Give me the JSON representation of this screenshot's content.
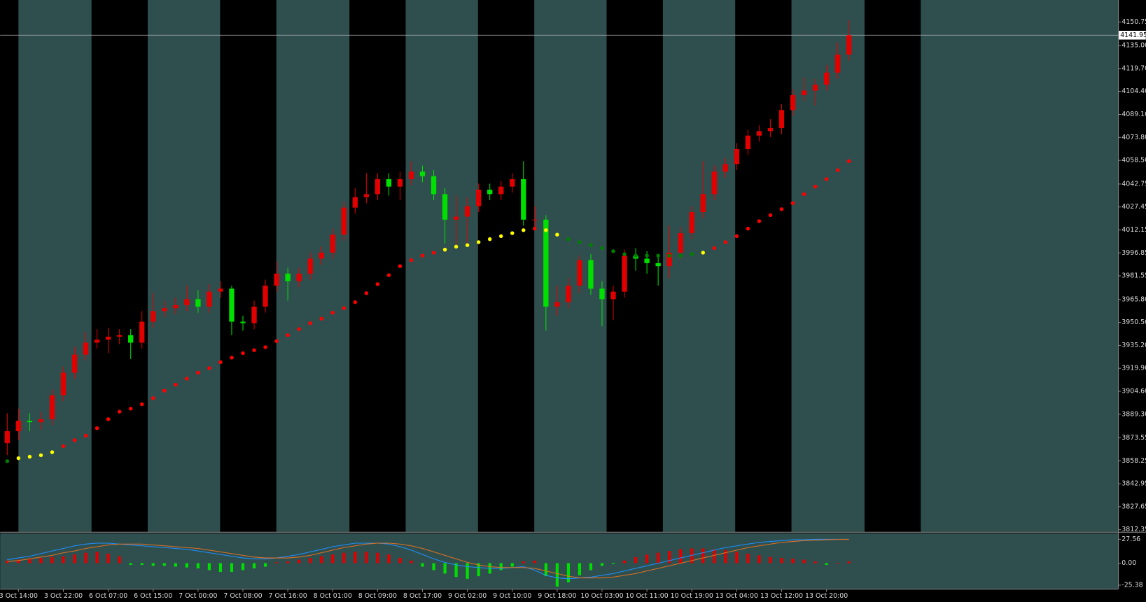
{
  "chart_data": [
    {
      "type": "candlestick",
      "x": [
        -2,
        0,
        2,
        4,
        6,
        8,
        10,
        12,
        14,
        16,
        18,
        20,
        22,
        24,
        26,
        28,
        30,
        32,
        34,
        36,
        38,
        40,
        42,
        44,
        46,
        48,
        50,
        52,
        54,
        56,
        58,
        60,
        62,
        64,
        66,
        68,
        70,
        72,
        74,
        76,
        78,
        80,
        82,
        84,
        86,
        88,
        90,
        92,
        94,
        96,
        98,
        100,
        102,
        104,
        106,
        108,
        110,
        112,
        114,
        116,
        118,
        120,
        122,
        124,
        126,
        128,
        130,
        132,
        134,
        136,
        138,
        140,
        142,
        144,
        146,
        148
      ],
      "open": [
        3870,
        3878,
        3885,
        3884,
        3886,
        3902,
        3917,
        3929,
        3937,
        3939,
        3941,
        3942,
        3937,
        3951,
        3958,
        3960,
        3962,
        3966,
        3961,
        3971,
        3973,
        3951,
        3950,
        3961,
        3975,
        3983,
        3978,
        3983,
        3993,
        3997,
        4009,
        4027,
        4034,
        4036,
        4046,
        4041,
        4046,
        4051,
        4048,
        4036,
        4019,
        4021,
        4028,
        4039,
        4036,
        4041,
        4046,
        4019,
        4019,
        3961,
        3964,
        3975,
        3992,
        3973,
        3966,
        3971,
        3995,
        3993,
        3990,
        3988,
        3997,
        4010,
        4024,
        4036,
        4051,
        4056,
        4066,
        4075,
        4078,
        4080,
        4092,
        4102,
        4105,
        4109,
        4117,
        4129
      ],
      "high": [
        3890,
        3893,
        3890,
        3891,
        3906,
        3921,
        3934,
        3944,
        3946,
        3947,
        3946,
        3946,
        3958,
        3970,
        3965,
        3967,
        3975,
        3972,
        3976,
        3978,
        3975,
        3955,
        3965,
        3979,
        3991,
        3987,
        3987,
        3997,
        4001,
        4013,
        4031,
        4040,
        4050,
        4050,
        4050,
        4051,
        4058,
        4055,
        4052,
        4040,
        4035,
        4034,
        4043,
        4043,
        4045,
        4050,
        4058,
        4028,
        4022,
        3975,
        3980,
        3995,
        3996,
        3978,
        3975,
        3999,
        4000,
        3998,
        3996,
        4015,
        4014,
        4028,
        4058,
        4055,
        4060,
        4070,
        4079,
        4082,
        4086,
        4096,
        4106,
        4114,
        4113,
        4122,
        4137,
        4152
      ],
      "low": [
        3862,
        3872,
        3878,
        3879,
        3882,
        3898,
        3913,
        3925,
        3933,
        3930,
        3936,
        3926,
        3933,
        3947,
        3954,
        3956,
        3958,
        3957,
        3957,
        3967,
        3942,
        3945,
        3946,
        3957,
        3971,
        3965,
        3974,
        3979,
        3989,
        3993,
        4005,
        4023,
        4030,
        4032,
        4035,
        4032,
        4042,
        4044,
        4032,
        4003,
        4000,
        4002,
        4024,
        4032,
        4032,
        4037,
        4015,
        4013,
        3945,
        3955,
        3960,
        3970,
        3969,
        3948,
        3952,
        3967,
        3985,
        3983,
        3975,
        3980,
        3993,
        4006,
        4020,
        4032,
        4047,
        4052,
        4062,
        4071,
        4074,
        4076,
        4088,
        4098,
        4095,
        4105,
        4113,
        4125
      ],
      "close": [
        3878,
        3885,
        3884,
        3886,
        3902,
        3917,
        3929,
        3937,
        3939,
        3941,
        3942,
        3937,
        3951,
        3958,
        3960,
        3962,
        3966,
        3961,
        3971,
        3973,
        3951,
        3950,
        3961,
        3975,
        3983,
        3978,
        3983,
        3993,
        3997,
        4009,
        4027,
        4034,
        4036,
        4046,
        4041,
        4046,
        4051,
        4048,
        4036,
        4019,
        4021,
        4028,
        4039,
        4036,
        4041,
        4046,
        4019,
        4019,
        3961,
        3964,
        3975,
        3992,
        3973,
        3966,
        3971,
        3995,
        3993,
        3990,
        3988,
        3997,
        4010,
        4024,
        4036,
        4051,
        4056,
        4066,
        4075,
        4078,
        4080,
        4092,
        4102,
        4105,
        4109,
        4117,
        4129,
        4141.95
      ],
      "up_color": "#e00000",
      "down_color": "#00e000",
      "ma": {
        "values": [
          3858,
          3860,
          3861,
          3862,
          3864,
          3868,
          3872,
          3875,
          3880,
          3886,
          3891,
          3893,
          3896,
          3900,
          3905,
          3909,
          3913,
          3917,
          3920,
          3924,
          3927,
          3930,
          3932,
          3934,
          3938,
          3942,
          3946,
          3950,
          3953,
          3957,
          3960,
          3964,
          3970,
          3976,
          3982,
          3988,
          3992,
          3995,
          3997,
          3999,
          4001,
          4002,
          4004,
          4006,
          4008,
          4010,
          4012,
          4013,
          4012,
          4009,
          4006,
          4004,
          4002,
          4000,
          3998,
          3996,
          3995,
          3995,
          3995,
          3995,
          3995,
          3996,
          3997,
          4000,
          4004,
          4008,
          4013,
          4018,
          4022,
          4026,
          4030,
          4036,
          4041,
          4046,
          4052,
          4058
        ],
        "point_colors": [
          "#008000",
          "#ffff00",
          "#ffff00",
          "#ffff00",
          "#ffff00",
          "#ff0000",
          "#ff0000",
          "#ff0000",
          "#ff0000",
          "#ff0000",
          "#ff0000",
          "#ff0000",
          "#ff0000",
          "#ff0000",
          "#ff0000",
          "#ff0000",
          "#ff0000",
          "#ff0000",
          "#ff0000",
          "#ff0000",
          "#ff0000",
          "#ff0000",
          "#ff0000",
          "#ff0000",
          "#ff0000",
          "#ff0000",
          "#ff0000",
          "#ff0000",
          "#ff0000",
          "#ff0000",
          "#ff0000",
          "#ff0000",
          "#ff0000",
          "#ff0000",
          "#ff0000",
          "#ff0000",
          "#ff0000",
          "#ff0000",
          "#ff0000",
          "#ffff00",
          "#ffff00",
          "#ffff00",
          "#ffff00",
          "#ffff00",
          "#ffff00",
          "#ffff00",
          "#ffff00",
          "#ff0000",
          "#ffff00",
          "#ffff00",
          "#008000",
          "#008000",
          "#008000",
          "#008000",
          "#008000",
          "#008000",
          "#008000",
          "#008000",
          "#008000",
          "#008000",
          "#008000",
          "#008000",
          "#ffff00",
          "#ff0000",
          "#ff0000",
          "#ff0000",
          "#ff0000",
          "#ff0000",
          "#ff0000",
          "#ff0000",
          "#ff0000",
          "#ff0000",
          "#ff0000",
          "#ff0000",
          "#ff0000",
          "#ff0000"
        ]
      },
      "current_price": 4141.95,
      "xlim": [
        -3.26,
        195.96
      ],
      "ylim": [
        3810.9,
        4165.4
      ],
      "yticks": [
        {
          "value": 4150.75,
          "label": "4150.75"
        },
        {
          "value": 4135,
          "label": "4135.00"
        },
        {
          "value": 4119.7,
          "label": "4119.70"
        },
        {
          "value": 4104.4,
          "label": "4104.40"
        },
        {
          "value": 4089.1,
          "label": "4089.10"
        },
        {
          "value": 4073.8,
          "label": "4073.80"
        },
        {
          "value": 4058.5,
          "label": "4058.50"
        },
        {
          "value": 4042.75,
          "label": "4042.75"
        },
        {
          "value": 4027.45,
          "label": "4027.45"
        },
        {
          "value": 4012.15,
          "label": "4012.15"
        },
        {
          "value": 3996.85,
          "label": "3996.85"
        },
        {
          "value": 3981.55,
          "label": "3981.55"
        },
        {
          "value": 3965.8,
          "label": "3965.80"
        },
        {
          "value": 3950.5,
          "label": "3950.50"
        },
        {
          "value": 3935.2,
          "label": "3935.20"
        },
        {
          "value": 3919.9,
          "label": "3919.90"
        },
        {
          "value": 3904.6,
          "label": "3904.60"
        },
        {
          "value": 3889.3,
          "label": "3889.30"
        },
        {
          "value": 3873.55,
          "label": "3873.55"
        },
        {
          "value": 3858.25,
          "label": "3858.25"
        },
        {
          "value": 3842.95,
          "label": "3842.95"
        },
        {
          "value": 3827.65,
          "label": "3827.65"
        },
        {
          "value": 3812.35,
          "label": "3812.35"
        }
      ]
    },
    {
      "type": "macd",
      "x": [
        -2,
        0,
        2,
        4,
        6,
        8,
        10,
        12,
        14,
        16,
        18,
        20,
        22,
        24,
        26,
        28,
        30,
        32,
        34,
        36,
        38,
        40,
        42,
        44,
        46,
        48,
        50,
        52,
        54,
        56,
        58,
        60,
        62,
        64,
        66,
        68,
        70,
        72,
        74,
        76,
        78,
        80,
        82,
        84,
        86,
        88,
        90,
        92,
        94,
        96,
        98,
        100,
        102,
        104,
        106,
        108,
        110,
        112,
        114,
        116,
        118,
        120,
        122,
        124,
        126,
        128,
        130,
        132,
        134,
        136,
        138,
        140,
        142,
        144,
        146,
        148
      ],
      "histogram": {
        "values": [
          3,
          4,
          5,
          6,
          7,
          8,
          10,
          12,
          13,
          11,
          8,
          -2,
          -2,
          -3,
          -3,
          -4,
          -5,
          -6,
          -8,
          -10,
          -10,
          -8,
          -6,
          -4,
          1,
          2,
          4,
          6,
          8,
          10,
          12,
          13,
          13,
          12,
          10,
          6,
          3,
          -4,
          -8,
          -12,
          -16,
          -18,
          -15,
          -12,
          -8,
          -4,
          2,
          3,
          -15,
          -27,
          -22,
          -14,
          -8,
          -3,
          -1,
          3,
          7,
          10,
          12,
          14,
          16,
          17,
          17,
          16,
          15,
          13,
          11,
          9,
          7,
          6,
          5,
          4,
          2,
          -2,
          0,
          2
        ],
        "positive_color": "#e00000",
        "negative_color": "#00e000"
      },
      "series": [
        {
          "color": "#1e90ff",
          "values": [
            4,
            6,
            8,
            11,
            14,
            17,
            20,
            22,
            23,
            23,
            22,
            21,
            20,
            19,
            18,
            17,
            16,
            14,
            12,
            10,
            8,
            6,
            5,
            5,
            6,
            8,
            10,
            13,
            16,
            19,
            21,
            23,
            23,
            23,
            22,
            19,
            15,
            10,
            5,
            1,
            -2,
            -4,
            -5,
            -6,
            -6,
            -5,
            -4,
            -8,
            -14,
            -17,
            -18,
            -17,
            -16,
            -14,
            -12,
            -9,
            -6,
            -3,
            0,
            3,
            6,
            9,
            12,
            15,
            18,
            20,
            22,
            24,
            25,
            26,
            27,
            27,
            27.5,
            27.5,
            27.6,
            27.6
          ]
        },
        {
          "color": "#e07020",
          "values": [
            2,
            3,
            5,
            7,
            9,
            12,
            14,
            17,
            19,
            21,
            22,
            22,
            22,
            21,
            20,
            19,
            18,
            17,
            15,
            13,
            11,
            9,
            7,
            6,
            6,
            6,
            7,
            9,
            12,
            15,
            18,
            20,
            22,
            23,
            23,
            22,
            20,
            17,
            13,
            9,
            5,
            1,
            -2,
            -4,
            -5,
            -5,
            -5,
            -6,
            -9,
            -12,
            -15,
            -17,
            -17,
            -17,
            -16,
            -14,
            -12,
            -9,
            -6,
            -3,
            0,
            3,
            6,
            9,
            12,
            15,
            18,
            20,
            22,
            24,
            25,
            26,
            26.5,
            27,
            27.3,
            27.5
          ]
        }
      ],
      "xlim": [
        -3.26,
        195.96
      ],
      "ylim": [
        -29.6,
        34.4
      ],
      "yticks": [
        27.56,
        {
          "value": 0,
          "label": "0.00"
        },
        -25.38
      ],
      "xticks": [
        {
          "value": 0,
          "label": "3 Oct 14:00"
        },
        {
          "value": 8,
          "label": "3 Oct 22:00"
        },
        {
          "value": 16,
          "label": "6 Oct 07:00"
        },
        {
          "value": 24,
          "label": "6 Oct 15:00"
        },
        {
          "value": 32,
          "label": "7 Oct 00:00"
        },
        {
          "value": 40,
          "label": "7 Oct 08:00"
        },
        {
          "value": 48,
          "label": "7 Oct 16:00"
        },
        {
          "value": 56,
          "label": "8 Oct 01:00"
        },
        {
          "value": 64,
          "label": "8 Oct 09:00"
        },
        {
          "value": 72,
          "label": "8 Oct 17:00"
        },
        {
          "value": 80,
          "label": "9 Oct 02:00"
        },
        {
          "value": 88,
          "label": "9 Oct 10:00"
        },
        {
          "value": 96,
          "label": "9 Oct 18:00"
        },
        {
          "value": 104,
          "label": "10 Oct 03:00"
        },
        {
          "value": 112,
          "label": "10 Oct 11:00"
        },
        {
          "value": 120,
          "label": "10 Oct 19:00"
        },
        {
          "value": 128,
          "label": "13 Oct 04:00"
        },
        {
          "value": 136,
          "label": "13 Oct 12:00"
        },
        {
          "value": 144,
          "label": "13 Oct 20:00"
        }
      ]
    }
  ]
}
